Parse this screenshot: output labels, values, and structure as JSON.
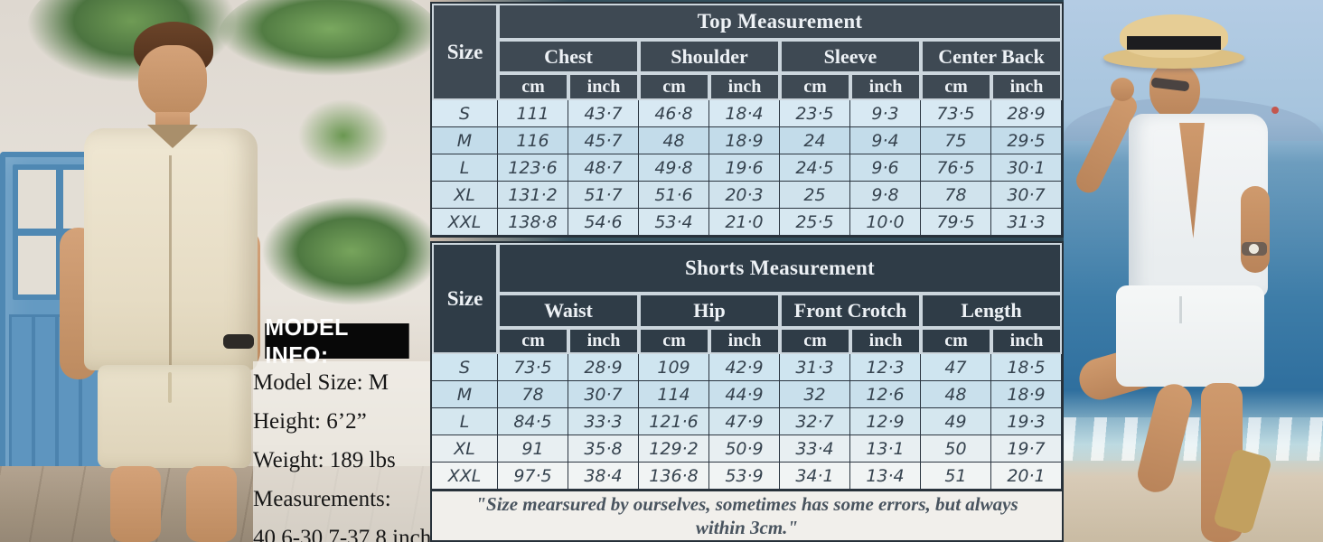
{
  "model_info": {
    "title": "MODEL INFO:",
    "lines": [
      "Model Size: M",
      "Height:  6’2”",
      "Weight: 189 lbs",
      "Measurements:",
      "40.6-30.7-37.8 inch"
    ]
  },
  "size_chart": {
    "top_table": {
      "title": "Top Measurement",
      "size_label": "Size",
      "groups": [
        "Chest",
        "Shoulder",
        "Sleeve",
        "Center Back"
      ],
      "unit_labels": [
        "cm",
        "inch"
      ],
      "rows": [
        {
          "size": "S",
          "values": [
            "111",
            "43·7",
            "46·8",
            "18·4",
            "23·5",
            "9·3",
            "73·5",
            "28·9"
          ]
        },
        {
          "size": "M",
          "values": [
            "116",
            "45·7",
            "48",
            "18·9",
            "24",
            "9·4",
            "75",
            "29·5"
          ]
        },
        {
          "size": "L",
          "values": [
            "123·6",
            "48·7",
            "49·8",
            "19·6",
            "24·5",
            "9·6",
            "76·5",
            "30·1"
          ]
        },
        {
          "size": "XL",
          "values": [
            "131·2",
            "51·7",
            "51·6",
            "20·3",
            "25",
            "9·8",
            "78",
            "30·7"
          ]
        },
        {
          "size": "XXL",
          "values": [
            "138·8",
            "54·6",
            "53·4",
            "21·0",
            "25·5",
            "10·0",
            "79·5",
            "31·3"
          ]
        }
      ]
    },
    "shorts_table": {
      "title": "Shorts Measurement",
      "size_label": "Size",
      "groups": [
        "Waist",
        "Hip",
        "Front Crotch",
        "Length"
      ],
      "unit_labels": [
        "cm",
        "inch"
      ],
      "rows": [
        {
          "size": "S",
          "values": [
            "73·5",
            "28·9",
            "109",
            "42·9",
            "31·3",
            "12·3",
            "47",
            "18·5"
          ]
        },
        {
          "size": "M",
          "values": [
            "78",
            "30·7",
            "114",
            "44·9",
            "32",
            "12·6",
            "48",
            "18·9"
          ]
        },
        {
          "size": "L",
          "values": [
            "84·5",
            "33·3",
            "121·6",
            "47·9",
            "32·7",
            "12·9",
            "49",
            "19·3"
          ]
        },
        {
          "size": "XL",
          "values": [
            "91",
            "35·8",
            "129·2",
            "50·9",
            "33·4",
            "13·1",
            "50",
            "19·7"
          ]
        },
        {
          "size": "XXL",
          "values": [
            "97·5",
            "38·4",
            "136·8",
            "53·9",
            "34·1",
            "13·4",
            "51",
            "20·1"
          ]
        }
      ]
    },
    "footnote_line1": "\"Size mearsured by ourselves, sometimes has some errors, but always",
    "footnote_line2": "within 3cm.\""
  },
  "colors": {
    "header_dark": "#3e4953",
    "header_darker": "#2f3c47",
    "row_light_blue": "#d8e9f3",
    "footnote_bg": "#f1efeb"
  }
}
